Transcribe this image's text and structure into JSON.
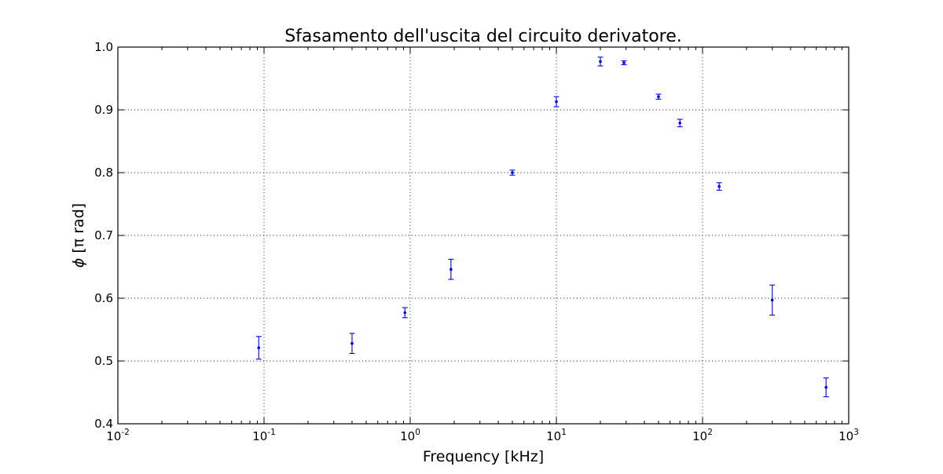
{
  "chart_data": {
    "type": "scatter",
    "title": "Sfasamento dell'uscita del circuito derivatore.",
    "xlabel": "Frequency [kHz]",
    "ylabel_symbol": "ϕ",
    "ylabel_unit": "[π rad]",
    "xscale": "log",
    "xlim": [
      0.01,
      1000
    ],
    "ylim": [
      0.4,
      1.0
    ],
    "grid": true,
    "marker_color": "#0000ff",
    "x_ticks": [
      {
        "value": 0.01,
        "base": "10",
        "exp": "-2"
      },
      {
        "value": 0.1,
        "base": "10",
        "exp": "-1"
      },
      {
        "value": 1,
        "base": "10",
        "exp": "0"
      },
      {
        "value": 10,
        "base": "10",
        "exp": "1"
      },
      {
        "value": 100,
        "base": "10",
        "exp": "2"
      },
      {
        "value": 1000,
        "base": "10",
        "exp": "3"
      }
    ],
    "y_ticks": [
      {
        "value": 0.4,
        "label": "0.4"
      },
      {
        "value": 0.5,
        "label": "0.5"
      },
      {
        "value": 0.6,
        "label": "0.6"
      },
      {
        "value": 0.7,
        "label": "0.7"
      },
      {
        "value": 0.8,
        "label": "0.8"
      },
      {
        "value": 0.9,
        "label": "0.9"
      },
      {
        "value": 1.0,
        "label": "1.0"
      }
    ],
    "points": [
      {
        "x": 0.092,
        "y": 0.521,
        "err": 0.018
      },
      {
        "x": 0.4,
        "y": 0.528,
        "err": 0.016
      },
      {
        "x": 0.92,
        "y": 0.577,
        "err": 0.008
      },
      {
        "x": 1.9,
        "y": 0.646,
        "err": 0.016
      },
      {
        "x": 5.0,
        "y": 0.8,
        "err": 0.004
      },
      {
        "x": 10.0,
        "y": 0.913,
        "err": 0.008
      },
      {
        "x": 20.0,
        "y": 0.977,
        "err": 0.007
      },
      {
        "x": 29.0,
        "y": 0.975,
        "err": 0.003
      },
      {
        "x": 50.0,
        "y": 0.921,
        "err": 0.004
      },
      {
        "x": 70.0,
        "y": 0.879,
        "err": 0.006
      },
      {
        "x": 130.0,
        "y": 0.778,
        "err": 0.006
      },
      {
        "x": 300.0,
        "y": 0.597,
        "err": 0.024
      },
      {
        "x": 700.0,
        "y": 0.458,
        "err": 0.015
      }
    ]
  }
}
